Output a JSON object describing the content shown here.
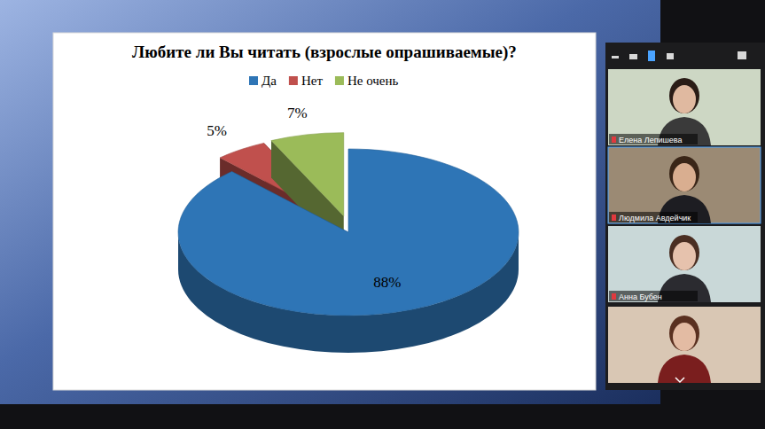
{
  "chart_data": {
    "type": "pie",
    "title": "Любите ли Вы читать (взрослые опрашиваемые)?",
    "categories": [
      "Да",
      "Нет",
      "Не очень"
    ],
    "values": [
      88,
      5,
      7
    ],
    "value_labels": [
      "88%",
      "5%",
      "7%"
    ],
    "colors": [
      "#2e75b6",
      "#c0504d",
      "#9bbb59"
    ],
    "legend": "top",
    "data_labels": true
  },
  "video_panel": {
    "participants": [
      "Елена Лепишева",
      "Людмила Авдейчик",
      "Анна Бубен"
    ]
  }
}
